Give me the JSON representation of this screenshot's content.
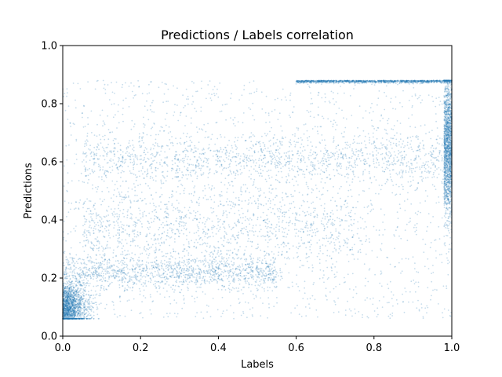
{
  "chart_data": {
    "type": "scatter",
    "title": "Predictions / Labels correlation",
    "xlabel": "Labels",
    "ylabel": "Predictions",
    "xlim": [
      0,
      1
    ],
    "ylim": [
      0,
      1
    ],
    "xticks": [
      "0.0",
      "0.2",
      "0.4",
      "0.6",
      "0.8",
      "1.0"
    ],
    "yticks": [
      "0.0",
      "0.2",
      "0.4",
      "0.6",
      "0.8",
      "1.0"
    ],
    "grid": false,
    "marker_color": "#1f77b4",
    "marker_alpha": 0.25,
    "prediction_range": [
      0.06,
      0.88
    ],
    "clusters": [
      {
        "label_range": [
          0.0,
          0.06
        ],
        "prediction_mean": 0.1,
        "prediction_spread": 0.04,
        "density": "very high"
      },
      {
        "label_range": [
          0.0,
          0.55
        ],
        "prediction_mean": 0.22,
        "prediction_spread": 0.03,
        "density": "high"
      },
      {
        "label_range": [
          0.05,
          0.75
        ],
        "prediction_mean": 0.38,
        "prediction_spread": 0.07,
        "density": "medium"
      },
      {
        "label_range": [
          0.05,
          1.0
        ],
        "prediction_mean": 0.61,
        "prediction_spread": 0.04,
        "density": "high"
      },
      {
        "label_range": [
          0.6,
          1.0
        ],
        "prediction_mean": 0.88,
        "prediction_spread": 0.0,
        "density": "high"
      },
      {
        "label_range": [
          0.98,
          1.0
        ],
        "prediction_mean": 0.66,
        "prediction_spread": 0.12,
        "density": "very high"
      }
    ]
  }
}
